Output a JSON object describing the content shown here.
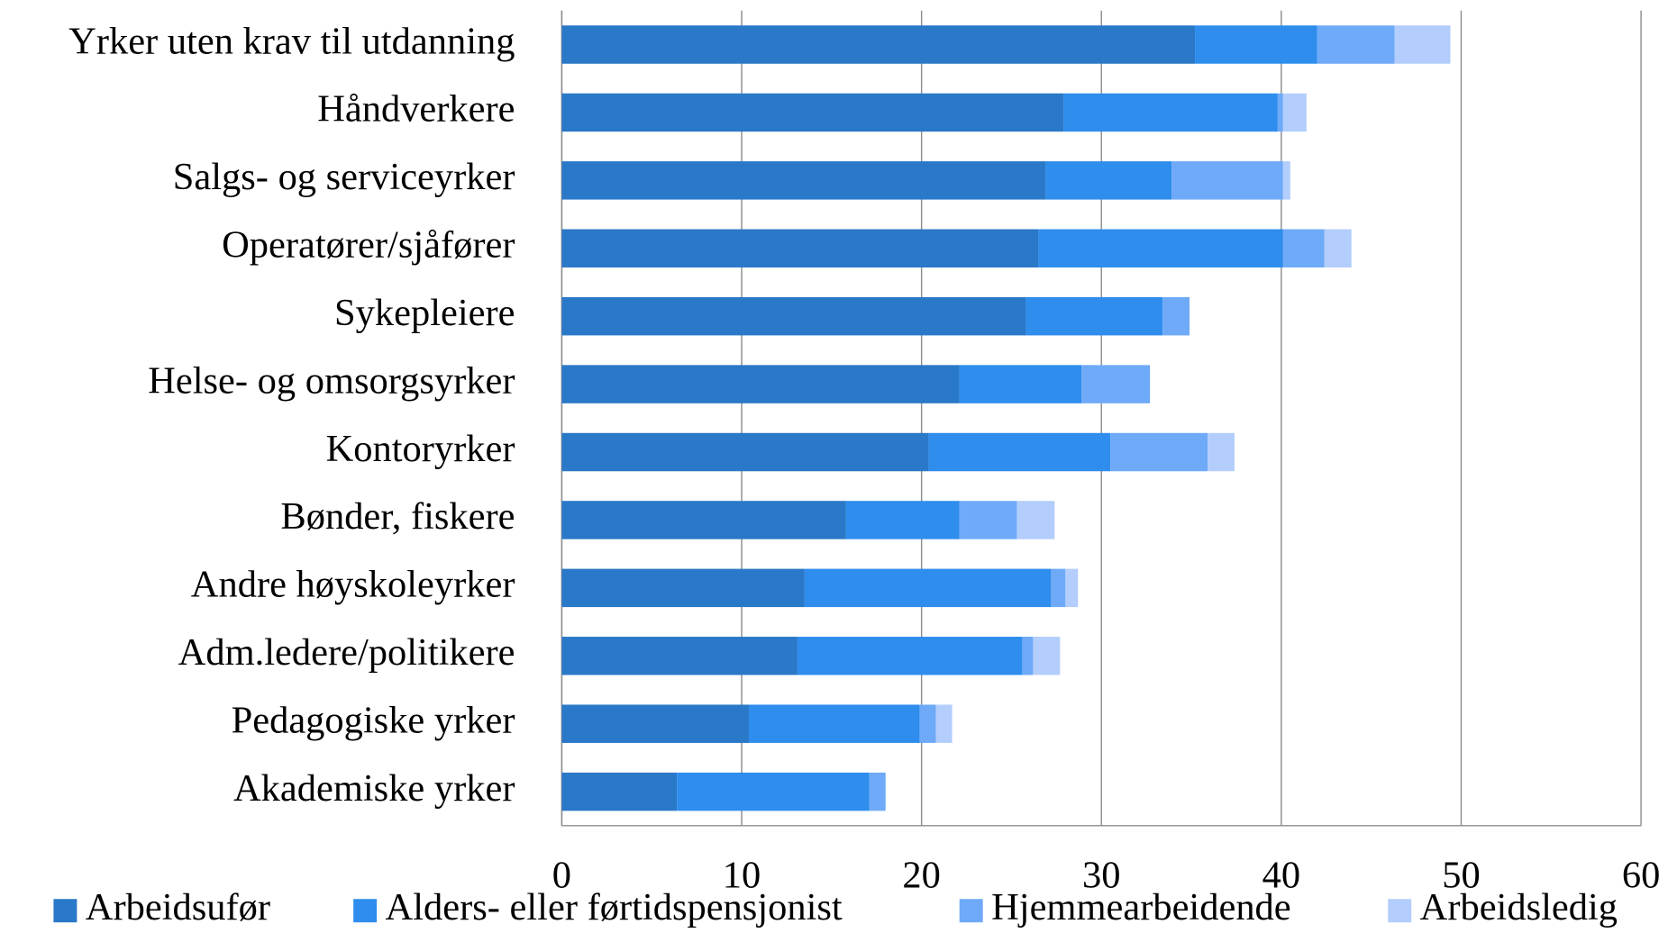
{
  "chart_data": {
    "type": "stacked-barh",
    "categories": [
      "Yrker uten krav til utdanning",
      "Håndverkere",
      "Salgs- og serviceyrker",
      "Operatører/sjåfører",
      "Sykepleiere",
      "Helse- og omsorgsyrker",
      "Kontoryrker",
      "Bønder, fiskere",
      "Andre høyskoleyrker",
      "Adm.ledere/politikere",
      "Pedagogiske yrker",
      "Akademiske yrker"
    ],
    "series": [
      {
        "name": "Arbeidsufør",
        "color": "#2a78c8",
        "values": [
          35.2,
          27.9,
          26.9,
          26.5,
          25.8,
          22.1,
          20.4,
          15.8,
          13.5,
          13.1,
          10.4,
          6.4
        ]
      },
      {
        "name": "Alders- eller førtidspensjonist",
        "color": "#2e8ded",
        "values": [
          6.8,
          11.9,
          7.0,
          13.6,
          7.6,
          6.8,
          10.1,
          6.3,
          13.7,
          12.5,
          9.5,
          10.7
        ]
      },
      {
        "name": "Hjemmearbeidende",
        "color": "#6eaaf8",
        "values": [
          4.3,
          0.3,
          6.2,
          2.3,
          1.5,
          3.8,
          5.4,
          3.2,
          0.8,
          0.6,
          0.9,
          0.9
        ]
      },
      {
        "name": "Arbeidsledig",
        "color": "#b3cefc",
        "values": [
          3.1,
          1.3,
          0.4,
          1.5,
          0,
          0,
          1.5,
          2.1,
          0.7,
          1.5,
          0.9,
          0
        ]
      }
    ],
    "xlim": [
      0,
      60
    ],
    "xticks": [
      0,
      10,
      20,
      30,
      40,
      50,
      60
    ],
    "grid": true,
    "legend": "bottom"
  }
}
